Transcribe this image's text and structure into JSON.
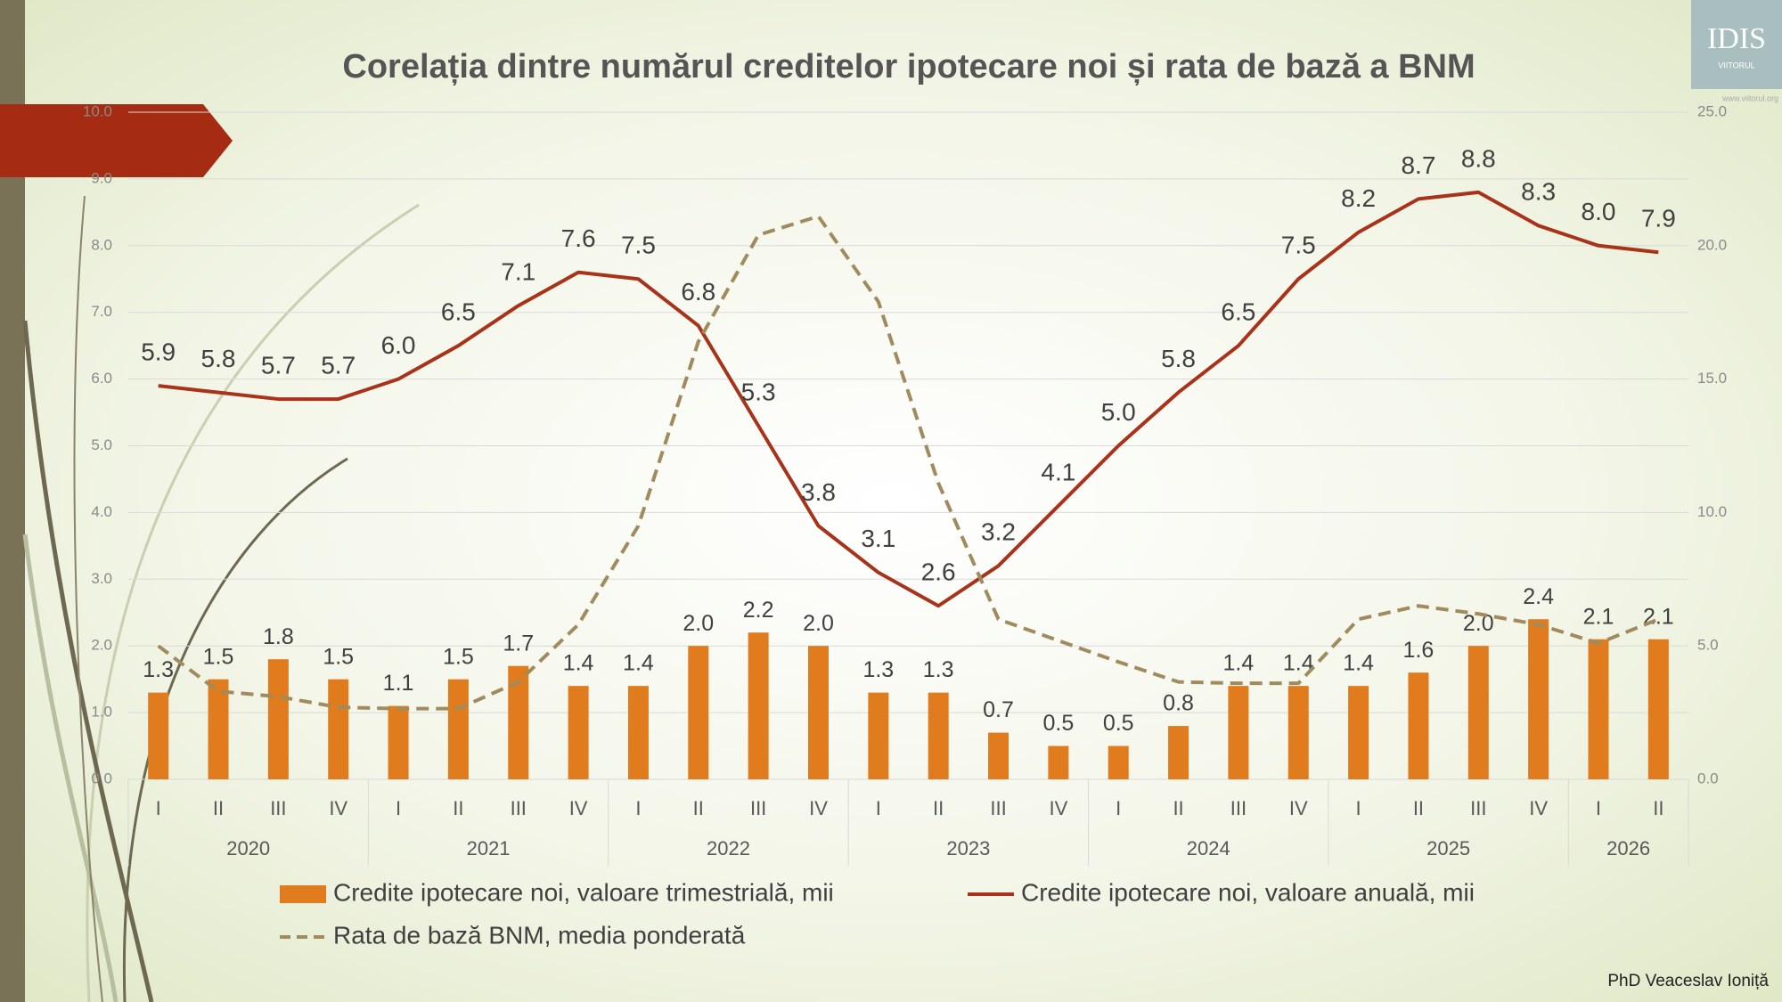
{
  "chart_data": {
    "type": "combo",
    "title": "Corelația dintre numărul creditelor ipotecare noi și rata de bază a BNM",
    "category_groups": [
      {
        "name": "2020",
        "quarters": [
          "I",
          "II",
          "III",
          "IV"
        ]
      },
      {
        "name": "2021",
        "quarters": [
          "I",
          "II",
          "III",
          "IV"
        ]
      },
      {
        "name": "2022",
        "quarters": [
          "I",
          "II",
          "III",
          "IV"
        ]
      },
      {
        "name": "2023",
        "quarters": [
          "I",
          "II",
          "III",
          "IV"
        ]
      },
      {
        "name": "2024",
        "quarters": [
          "I",
          "II",
          "III",
          "IV"
        ]
      },
      {
        "name": "2025",
        "quarters": [
          "I",
          "II",
          "III",
          "IV"
        ]
      },
      {
        "name": "2026",
        "quarters": [
          "I",
          "II"
        ]
      }
    ],
    "ylim": [
      0,
      10
    ],
    "yticks": [
      {
        "value": 0,
        "label": "0.0"
      },
      {
        "value": 1,
        "label": "1.0"
      },
      {
        "value": 2,
        "label": "2.0"
      },
      {
        "value": 3,
        "label": "3.0"
      },
      {
        "value": 4,
        "label": "4.0"
      },
      {
        "value": 5,
        "label": "5.0"
      },
      {
        "value": 6,
        "label": "6.0"
      },
      {
        "value": 7,
        "label": "7.0"
      },
      {
        "value": 8,
        "label": "8.0"
      },
      {
        "value": 9,
        "label": "9.0"
      },
      {
        "value": 10,
        "label": "10.0"
      }
    ],
    "y2lim": [
      0,
      25
    ],
    "y2ticks": [
      {
        "value": 0,
        "label": "0.0"
      },
      {
        "value": 5,
        "label": "5.0"
      },
      {
        "value": 10,
        "label": "10.0"
      },
      {
        "value": 15,
        "label": "15.0"
      },
      {
        "value": 20,
        "label": "20.0"
      },
      {
        "value": 25,
        "label": "25.0"
      }
    ],
    "grid": true,
    "series": [
      {
        "name": "Credite ipotecare noi, valoare trimestrială, mii",
        "type": "bar",
        "color": "#e07c1e",
        "values": [
          1.3,
          1.5,
          1.8,
          1.5,
          1.1,
          1.5,
          1.7,
          1.4,
          1.4,
          2.0,
          2.2,
          2.0,
          1.3,
          1.3,
          0.7,
          0.5,
          0.5,
          0.8,
          1.4,
          1.4,
          1.4,
          1.6,
          2.0,
          2.4,
          2.1,
          2.1
        ],
        "value_labels": [
          "1.3",
          "1.5",
          "1.8",
          "1.5",
          "1.1",
          "1.5",
          "1.7",
          "1.4",
          "1.4",
          "2.0",
          "2.2",
          "2.0",
          "1.3",
          "1.3",
          "0.7",
          "0.5",
          "0.5",
          "0.8",
          "1.4",
          "1.4",
          "1.4",
          "1.6",
          "2.0",
          "2.4",
          "2.1",
          "2.1"
        ]
      },
      {
        "name": "Credite ipotecare noi, valoare anuală, mii",
        "type": "line",
        "color": "#a8321a",
        "values": [
          5.9,
          5.8,
          5.7,
          5.7,
          6.0,
          6.5,
          7.1,
          7.6,
          7.5,
          6.8,
          5.3,
          3.8,
          3.1,
          2.6,
          3.2,
          4.1,
          5.0,
          5.8,
          6.5,
          7.5,
          8.2,
          8.7,
          8.8,
          8.3,
          8.0,
          7.9
        ],
        "value_labels": [
          "5.9",
          "5.8",
          "5.7",
          "5.7",
          "6.0",
          "6.5",
          "7.1",
          "7.6",
          "7.5",
          "6.8",
          "5.3",
          "3.8",
          "3.1",
          "2.6",
          "3.2",
          "4.1",
          "5.0",
          "5.8",
          "6.5",
          "7.5",
          "8.2",
          "8.7",
          "8.8",
          "8.3",
          "8.0",
          "7.9"
        ]
      },
      {
        "name": "Rata de bază BNM, media ponderată",
        "type": "line",
        "dashed": true,
        "axis": "y2",
        "color": "#a08b5e",
        "values": [
          5.0,
          3.3,
          3.1,
          2.7,
          2.65,
          2.65,
          3.65,
          5.8,
          9.5,
          16.4,
          20.4,
          21.1,
          17.9,
          11.1,
          6.0,
          5.2,
          4.4,
          3.65,
          3.6,
          3.6,
          6.0,
          6.5,
          6.2,
          5.8,
          5.1,
          6.0
        ]
      }
    ]
  },
  "logo": {
    "text": "IDIS",
    "subtext": "VIITORUL",
    "url": "www.viitorul.org"
  },
  "author": "PhD Veaceslav Ioniță"
}
